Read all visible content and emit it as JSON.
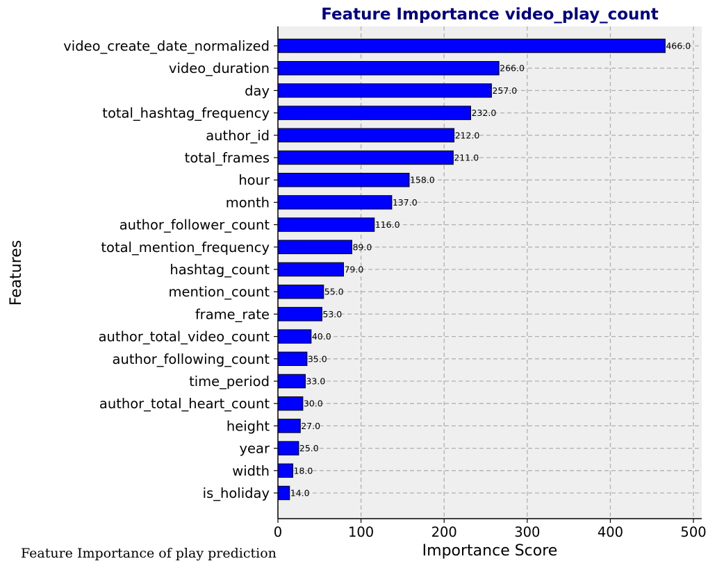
{
  "chart_data": {
    "type": "bar",
    "orientation": "horizontal",
    "title": "Feature Importance video_play_count",
    "xlabel": "Importance Score",
    "ylabel": "Features",
    "categories": [
      "video_create_date_normalized",
      "video_duration",
      "day",
      "total_hashtag_frequency",
      "author_id",
      "total_frames",
      "hour",
      "month",
      "author_follower_count",
      "total_mention_frequency",
      "hashtag_count",
      "mention_count",
      "frame_rate",
      "author_total_video_count",
      "author_following_count",
      "time_period",
      "author_total_heart_count",
      "height",
      "year",
      "width",
      "is_holiday"
    ],
    "values": [
      466,
      266,
      257,
      232,
      212,
      211,
      158,
      137,
      116,
      89,
      79,
      55,
      53,
      40,
      35,
      33,
      30,
      27,
      25,
      18,
      14
    ],
    "value_labels": [
      "466.0",
      "266.0",
      "257.0",
      "232.0",
      "212.0",
      "211.0",
      "158.0",
      "137.0",
      "116.0",
      "89.0",
      "79.0",
      "55.0",
      "53.0",
      "40.0",
      "35.0",
      "33.0",
      "30.0",
      "27.0",
      "25.0",
      "18.0",
      "14.0"
    ],
    "xlim": [
      0,
      510
    ],
    "xticks": [
      0,
      100,
      200,
      300,
      400,
      500
    ],
    "grid": true,
    "bar_color": "#0000ff",
    "bar_edge_color": "#000000",
    "plot_background": "#efefef",
    "title_color": "#000080"
  },
  "caption": "Feature Importance of play prediction"
}
